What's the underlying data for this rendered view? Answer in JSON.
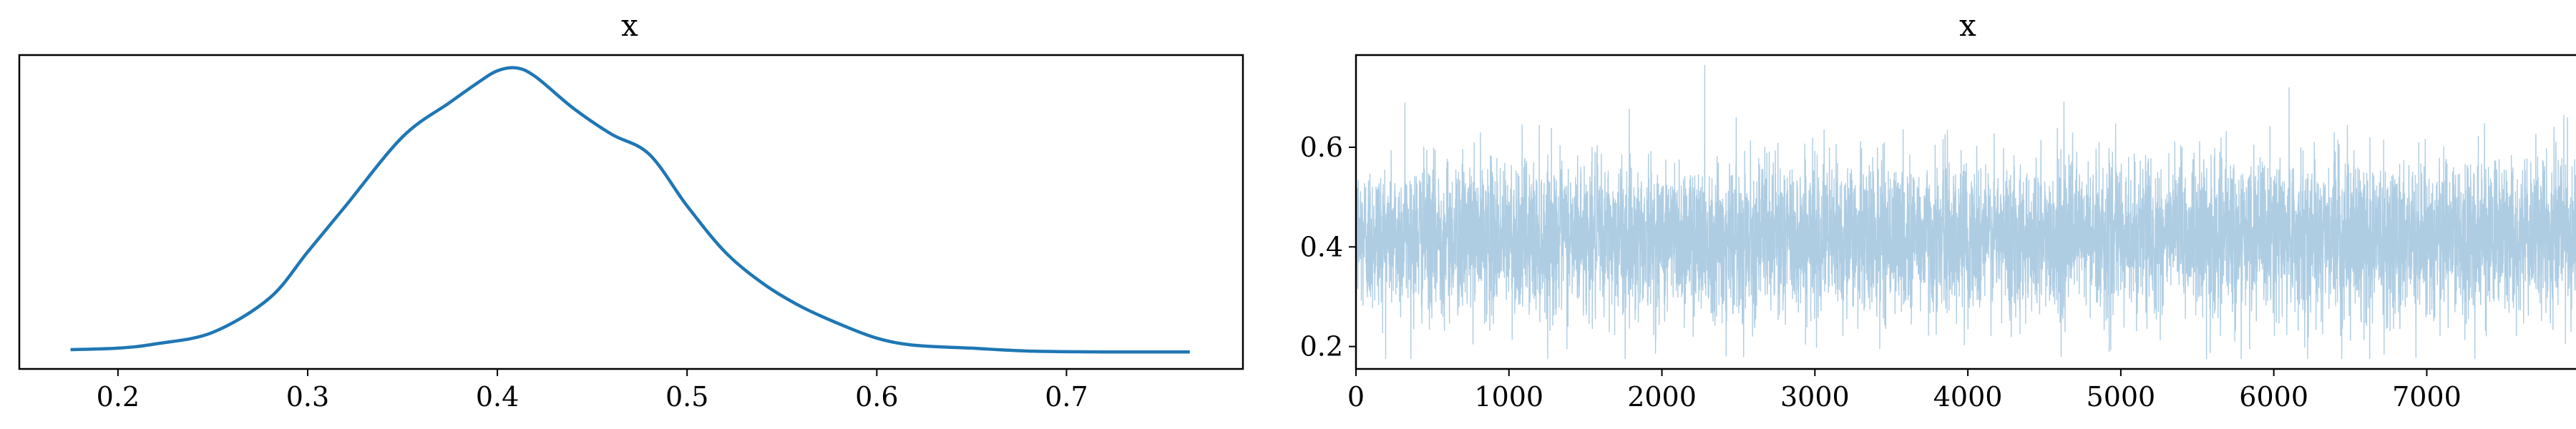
{
  "chart_data": [
    {
      "type": "line",
      "title": "x",
      "xlabel": "",
      "ylabel": "",
      "xlim": [
        0.148,
        0.793
      ],
      "ylim": [
        0,
        1
      ],
      "yticks_shown": false,
      "x_ticks": [
        0.2,
        0.3,
        0.4,
        0.5,
        0.6,
        0.7
      ],
      "x_tick_labels": [
        "0.2",
        "0.3",
        "0.4",
        "0.5",
        "0.6",
        "0.7"
      ],
      "series": [
        {
          "color": "#1f77b4",
          "x": [
            0.175,
            0.2,
            0.22,
            0.25,
            0.28,
            0.3,
            0.32,
            0.35,
            0.375,
            0.39,
            0.4,
            0.41,
            0.42,
            0.44,
            0.46,
            0.48,
            0.5,
            0.52,
            0.54,
            0.56,
            0.58,
            0.6,
            0.62,
            0.65,
            0.68,
            0.72,
            0.765
          ],
          "y": [
            0.02,
            0.025,
            0.04,
            0.08,
            0.2,
            0.36,
            0.52,
            0.76,
            0.88,
            0.95,
            0.99,
            1.0,
            0.97,
            0.86,
            0.77,
            0.7,
            0.52,
            0.36,
            0.25,
            0.17,
            0.11,
            0.06,
            0.035,
            0.025,
            0.015,
            0.012,
            0.012
          ]
        }
      ],
      "grid": false
    },
    {
      "type": "line",
      "title": "x",
      "xlabel": "",
      "ylabel": "",
      "xlim": [
        0,
        7999
      ],
      "ylim": [
        0.155,
        0.785
      ],
      "x_ticks": [
        0,
        1000,
        2000,
        3000,
        4000,
        5000,
        6000,
        7000
      ],
      "x_tick_labels": [
        "0",
        "1000",
        "2000",
        "3000",
        "4000",
        "5000",
        "6000",
        "7000"
      ],
      "y_ticks": [
        0.2,
        0.4,
        0.6
      ],
      "y_tick_labels": [
        "0.2",
        "0.4",
        "0.6"
      ],
      "series": [
        {
          "color": "#aecde3",
          "n_draws": 8000,
          "mean": 0.42,
          "sd": 0.075,
          "min": 0.175,
          "max": 0.765,
          "spikes": [
            {
              "x": 2280,
              "y": 0.765
            },
            {
              "x": 6100,
              "y": 0.72
            },
            {
              "x": 320,
              "y": 0.69
            },
            {
              "x": 7920,
              "y": 0.66
            },
            {
              "x": 5560,
              "y": 0.175
            },
            {
              "x": 2420,
              "y": 0.18
            },
            {
              "x": 1760,
              "y": 0.175
            }
          ]
        }
      ],
      "grid": false
    }
  ]
}
